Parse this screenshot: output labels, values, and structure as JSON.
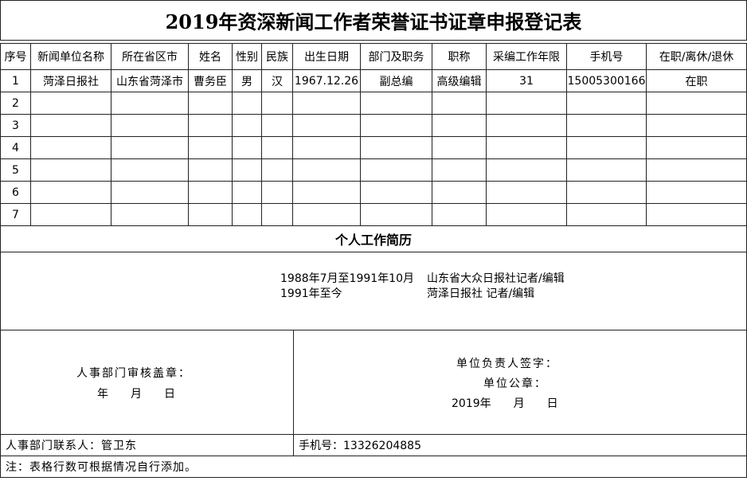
{
  "title": "2019年资深新闻工作者荣誉证书证章申报登记表",
  "table": {
    "header": [
      "序号",
      "新闻单位名称",
      "所在省区市",
      "姓名",
      "性别",
      "民族",
      "出生日期",
      "部门及职务",
      "职称",
      "采编工作年限",
      "手机号",
      "在职/离休/退休"
    ],
    "rows": [
      [
        "1",
        "菏泽日报社",
        "山东省菏泽市",
        "曹务臣",
        "男",
        "汉",
        "1967.12.26",
        "副总编",
        "高级编辑",
        "31",
        "15005300166",
        "在职"
      ],
      [
        "2"
      ],
      [
        "3"
      ],
      [
        "4"
      ],
      [
        "5"
      ],
      [
        "6"
      ],
      [
        "7"
      ]
    ]
  },
  "resume": {
    "title": "个人工作简历",
    "entries": [
      {
        "period": "1988年7月至1991年10月",
        "detail": "山东省大众日报社记者/编辑"
      },
      {
        "period": "1991年至今",
        "detail": "菏泽日报社 记者/编辑"
      }
    ]
  },
  "approval": {
    "hr_stamp": "人事部门审核盖章：",
    "hr_date": "年　　月　　日",
    "leader_sign": "单位负责人签字：",
    "unit_seal": "单位公章：",
    "unit_date": "2019年　　月　　日"
  },
  "contact": {
    "person": "人事部门联系人：管卫东",
    "phone": "手机号：13326204885"
  },
  "note": "注：表格行数可根据情况自行添加。"
}
